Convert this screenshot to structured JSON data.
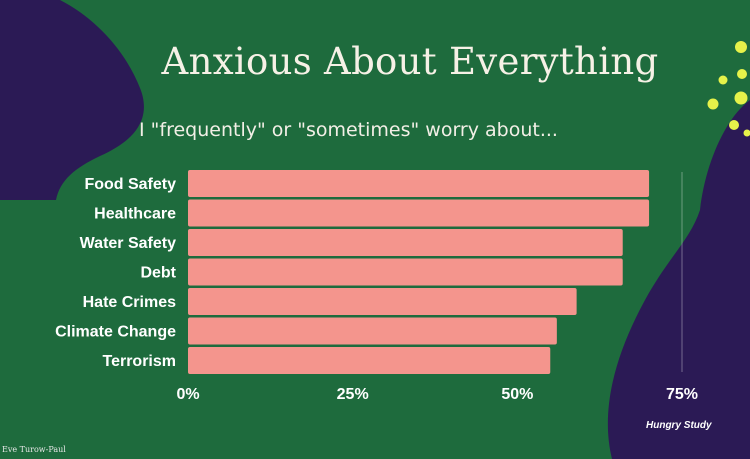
{
  "title": "Anxious About Everything",
  "subtitle": "I \"frequently\" or \"sometimes\" worry about...",
  "source": "Hungry Study",
  "credit": "Eve Turow-Paul",
  "colors": {
    "background": "#1e6b3d",
    "blob": "#2b1a55",
    "bar": "#f4958d",
    "dots": "#e6f24a"
  },
  "chart_data": {
    "type": "bar",
    "orientation": "horizontal",
    "categories": [
      "Food Safety",
      "Healthcare",
      "Water Safety",
      "Debt",
      "Hate Crimes",
      "Climate Change",
      "Terrorism"
    ],
    "values": [
      70,
      70,
      66,
      66,
      59,
      56,
      55
    ],
    "xlim": [
      0,
      75
    ],
    "ticks": [
      0,
      25,
      50,
      75
    ],
    "tick_labels": [
      "0%",
      "25%",
      "50%",
      "75%"
    ],
    "grid": false
  }
}
